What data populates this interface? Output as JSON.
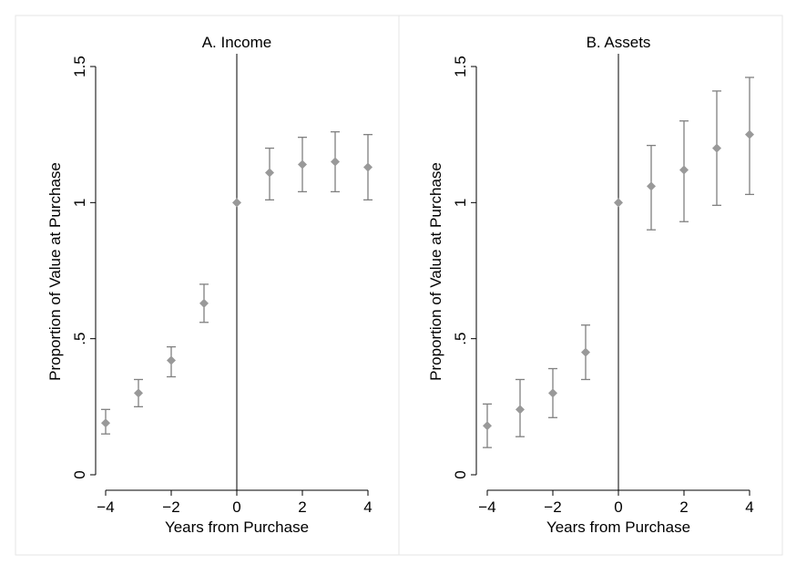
{
  "chart_data": [
    {
      "type": "scatter",
      "title": "A. Income",
      "xlabel": "Years from Purchase",
      "ylabel": "Proportion of Value at Purchase",
      "xlim": [
        -4,
        4
      ],
      "ylim": [
        0,
        1.5
      ],
      "xticks": [
        -4,
        -2,
        0,
        2,
        4
      ],
      "xtick_labels": [
        "−4",
        "−2",
        "0",
        "2",
        "4"
      ],
      "yticks": [
        0,
        0.5,
        1,
        1.5
      ],
      "ytick_labels": [
        "0",
        ".5",
        "1",
        "1.5"
      ],
      "reference_line_x": 0,
      "grid": false,
      "legend": "none",
      "x": [
        -4,
        -3,
        -2,
        -1,
        0,
        1,
        2,
        3,
        4
      ],
      "y": [
        0.19,
        0.3,
        0.42,
        0.63,
        1.0,
        1.11,
        1.14,
        1.15,
        1.13
      ],
      "ci_low": [
        0.15,
        0.25,
        0.36,
        0.56,
        1.0,
        1.01,
        1.04,
        1.04,
        1.01
      ],
      "ci_high": [
        0.24,
        0.35,
        0.47,
        0.7,
        1.0,
        1.2,
        1.24,
        1.26,
        1.25
      ]
    },
    {
      "type": "scatter",
      "title": "B. Assets",
      "xlabel": "Years from Purchase",
      "ylabel": "Proportion of Value at Purchase",
      "xlim": [
        -4,
        4
      ],
      "ylim": [
        0,
        1.5
      ],
      "xticks": [
        -4,
        -2,
        0,
        2,
        4
      ],
      "xtick_labels": [
        "−4",
        "−2",
        "0",
        "2",
        "4"
      ],
      "yticks": [
        0,
        0.5,
        1,
        1.5
      ],
      "ytick_labels": [
        "0",
        ".5",
        "1",
        "1.5"
      ],
      "reference_line_x": 0,
      "grid": false,
      "legend": "none",
      "x": [
        -4,
        -3,
        -2,
        -1,
        0,
        1,
        2,
        3,
        4
      ],
      "y": [
        0.18,
        0.24,
        0.3,
        0.45,
        1.0,
        1.06,
        1.12,
        1.2,
        1.25
      ],
      "ci_low": [
        0.1,
        0.14,
        0.21,
        0.35,
        1.0,
        0.9,
        0.93,
        0.99,
        1.03
      ],
      "ci_high": [
        0.26,
        0.35,
        0.39,
        0.55,
        1.0,
        1.21,
        1.3,
        1.41,
        1.46
      ]
    }
  ],
  "colors": {
    "marker": "#999999",
    "errorbar": "#808080",
    "axis": "#000000",
    "panel_border": "#e6e6e6",
    "background": "#ffffff"
  }
}
